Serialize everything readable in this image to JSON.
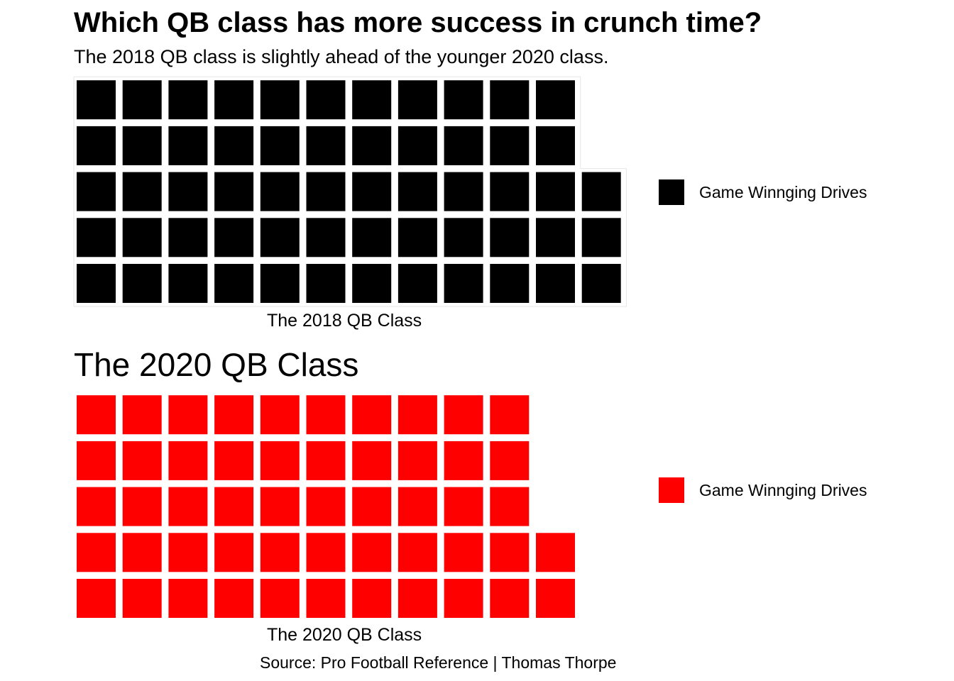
{
  "title": "Which QB class has more success in crunch time?",
  "subtitle": "The 2018 QB class is slightly ahead of the younger 2020 class.",
  "caption": "Source: Pro Football Reference | Thomas Thorpe",
  "chart_data": [
    {
      "type": "waffle",
      "title": "",
      "xlabel": "The 2018 QB Class",
      "rows": 5,
      "series": [
        {
          "name": "Game Winnging Drives",
          "values": [
            58
          ],
          "color": "#000000"
        }
      ],
      "legend_position": "right",
      "grid": false
    },
    {
      "type": "waffle",
      "title": "The 2020 QB Class",
      "xlabel": "The 2020 QB Class",
      "rows": 5,
      "series": [
        {
          "name": "Game Winnging Drives",
          "values": [
            52
          ],
          "color": "#ff0000"
        }
      ],
      "legend_position": "right",
      "grid": false
    }
  ]
}
